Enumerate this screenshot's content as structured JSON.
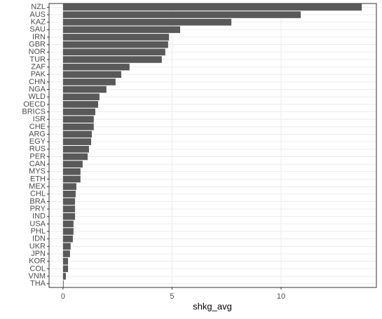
{
  "chart_data": {
    "type": "barh",
    "x_label": "shkg_avg",
    "categories": [
      "NZL",
      "AUS",
      "KAZ",
      "SAU",
      "IRN",
      "GBR",
      "NOR",
      "TUR",
      "ZAF",
      "PAK",
      "CHN",
      "NGA",
      "WLD",
      "OECD",
      "BRICS",
      "ISR",
      "CHE",
      "ARG",
      "EGY",
      "RUS",
      "PER",
      "CAN",
      "MYS",
      "ETH",
      "MEX",
      "CHL",
      "BRA",
      "PRY",
      "IND",
      "USA",
      "PHL",
      "IDN",
      "UKR",
      "JPN",
      "KOR",
      "COL",
      "VNM",
      "THA"
    ],
    "values": [
      13.7,
      10.9,
      7.72,
      5.37,
      4.86,
      4.82,
      4.69,
      4.53,
      3.05,
      2.67,
      2.41,
      1.99,
      1.67,
      1.61,
      1.48,
      1.41,
      1.41,
      1.32,
      1.29,
      1.19,
      1.13,
      0.9,
      0.8,
      0.8,
      0.61,
      0.58,
      0.55,
      0.55,
      0.55,
      0.48,
      0.48,
      0.45,
      0.35,
      0.32,
      0.23,
      0.23,
      0.13,
      0.03
    ],
    "color": "#595959",
    "xlim": [
      -0.64,
      14.37
    ],
    "xticks": [
      0,
      5,
      10
    ],
    "grid": true
  }
}
